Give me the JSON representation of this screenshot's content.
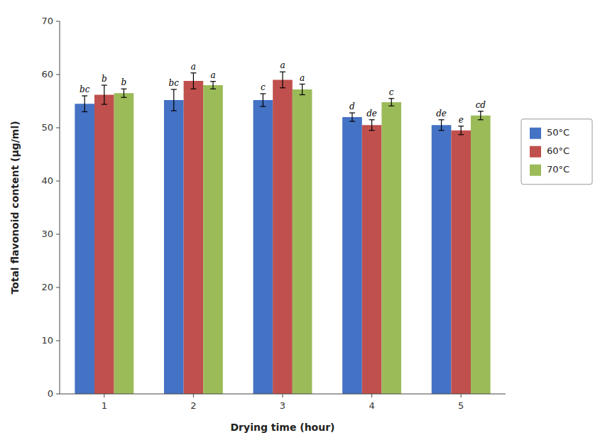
{
  "chart_data": {
    "type": "bar",
    "categories": [
      1,
      2,
      3,
      4,
      5
    ],
    "xlabel": "Drying time (hour)",
    "ylabel": "Total flavonoid content (μg/ml)",
    "series": [
      {
        "name": "50°C",
        "color": "#4472C4",
        "values": [
          54.5,
          55.2,
          55.2,
          52.0,
          50.5
        ],
        "errors": [
          1.5,
          2.0,
          1.2,
          0.8,
          1.0
        ],
        "annotations": [
          "bc",
          "bc",
          "c",
          "d",
          "de"
        ]
      },
      {
        "name": "60°C",
        "color": "#C0504D",
        "values": [
          56.2,
          58.8,
          59.0,
          50.5,
          49.5
        ],
        "errors": [
          1.8,
          1.5,
          1.5,
          1.0,
          0.8
        ],
        "annotations": [
          "b",
          "a",
          "a",
          "de",
          "e"
        ]
      },
      {
        "name": "70°C",
        "color": "#9BBB59",
        "values": [
          56.5,
          58.0,
          57.2,
          54.8,
          52.3
        ],
        "errors": [
          0.8,
          0.7,
          1.0,
          0.7,
          0.8
        ],
        "annotations": [
          "b",
          "a",
          "a",
          "c",
          "cd"
        ]
      }
    ],
    "ylim": [
      0,
      70
    ],
    "yticks": [
      0,
      10,
      20,
      30,
      40,
      50,
      60,
      70
    ],
    "grid": false,
    "legend": "right"
  }
}
